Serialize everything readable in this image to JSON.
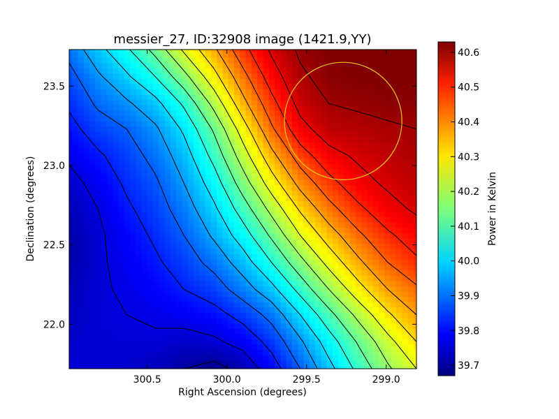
{
  "chart_data": {
    "type": "heatmap",
    "title": "messier_27, ID:32908 image (1421.9,YY)",
    "xlabel": "Right Ascension (degrees)",
    "ylabel": "Declination (degrees)",
    "colorbar_label": "Power in Kelvin",
    "colormap": "jet",
    "xlim": [
      300.99,
      298.81
    ],
    "ylim": [
      21.72,
      23.73
    ],
    "x_ticks": [
      300.5,
      300.0,
      299.5,
      299.0
    ],
    "x_tick_labels": [
      "300.5",
      "300.0",
      "299.5",
      "299.0"
    ],
    "y_ticks": [
      22.0,
      22.5,
      23.0,
      23.5
    ],
    "y_tick_labels": [
      "22.0",
      "22.5",
      "23.0",
      "23.5"
    ],
    "clim": [
      39.67,
      40.63
    ],
    "colorbar_ticks": [
      39.7,
      39.8,
      39.9,
      40.0,
      40.1,
      40.2,
      40.3,
      40.4,
      40.5,
      40.6
    ],
    "colorbar_tick_labels": [
      "39.7",
      "39.8",
      "39.9",
      "40.0",
      "40.1",
      "40.2",
      "40.3",
      "40.4",
      "40.5",
      "40.6"
    ],
    "contour_levels": [
      39.7,
      39.76,
      39.82,
      39.88,
      39.94,
      40.0,
      40.06,
      40.12,
      40.18,
      40.24,
      40.3,
      40.36,
      40.42,
      40.48,
      40.54,
      40.6
    ],
    "field": {
      "x": [
        300.99,
        300.81,
        300.63,
        300.45,
        300.27,
        300.08,
        299.9,
        299.72,
        299.54,
        299.36,
        299.17,
        298.99,
        298.81
      ],
      "y": [
        23.73,
        23.56,
        23.39,
        23.23,
        23.06,
        22.89,
        22.73,
        22.56,
        22.39,
        22.22,
        22.06,
        21.89,
        21.72
      ],
      "values": [
        [
          39.9,
          39.98,
          40.05,
          40.14,
          40.25,
          40.35,
          40.46,
          40.55,
          40.61,
          40.63,
          40.63,
          40.63,
          40.63
        ],
        [
          39.86,
          39.93,
          39.99,
          40.06,
          40.16,
          40.28,
          40.4,
          40.51,
          40.59,
          40.62,
          40.63,
          40.63,
          40.63
        ],
        [
          39.83,
          39.89,
          39.93,
          39.98,
          40.07,
          40.2,
          40.34,
          40.46,
          40.56,
          40.6,
          40.61,
          40.62,
          40.62
        ],
        [
          39.8,
          39.85,
          39.88,
          39.93,
          40.01,
          40.13,
          40.27,
          40.41,
          40.52,
          40.57,
          40.58,
          40.59,
          40.6
        ],
        [
          39.77,
          39.81,
          39.85,
          39.9,
          39.97,
          40.08,
          40.21,
          40.34,
          40.45,
          40.52,
          40.55,
          40.57,
          40.59
        ],
        [
          39.74,
          39.78,
          39.83,
          39.87,
          39.94,
          40.03,
          40.15,
          40.27,
          40.38,
          40.46,
          40.52,
          40.55,
          40.57
        ],
        [
          39.72,
          39.76,
          39.81,
          39.85,
          39.91,
          39.99,
          40.09,
          40.2,
          40.31,
          40.4,
          40.47,
          40.52,
          40.55
        ],
        [
          39.71,
          39.75,
          39.79,
          39.83,
          39.88,
          39.95,
          40.03,
          40.13,
          40.24,
          40.33,
          40.41,
          40.47,
          40.51
        ],
        [
          39.71,
          39.75,
          39.78,
          39.81,
          39.85,
          39.9,
          39.97,
          40.06,
          40.16,
          40.26,
          40.35,
          40.42,
          40.47
        ],
        [
          39.72,
          39.75,
          39.77,
          39.79,
          39.82,
          39.85,
          39.91,
          39.98,
          40.08,
          40.18,
          40.28,
          40.36,
          40.41
        ],
        [
          39.73,
          39.75,
          39.76,
          39.77,
          39.78,
          39.8,
          39.84,
          39.9,
          40.0,
          40.1,
          40.2,
          40.29,
          40.36
        ],
        [
          39.74,
          39.75,
          39.75,
          39.75,
          39.74,
          39.75,
          39.78,
          39.84,
          39.93,
          40.03,
          40.13,
          40.22,
          40.3
        ],
        [
          39.75,
          39.75,
          39.74,
          39.73,
          39.7,
          39.68,
          39.72,
          39.79,
          39.88,
          39.98,
          40.08,
          40.17,
          40.24
        ]
      ]
    },
    "annotation_circle": {
      "ra": 299.27,
      "dec": 23.28,
      "radius_deg": 0.37,
      "color": "#e6c619"
    }
  }
}
